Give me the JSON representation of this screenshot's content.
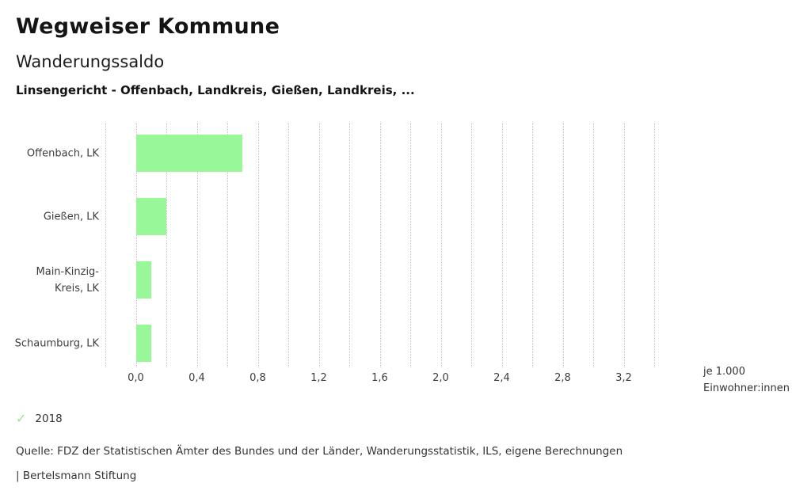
{
  "header": {
    "title": "Wegweiser Kommune",
    "subtitle": "Wanderungssaldo",
    "comparison_title": "Linsengericht - Offenbach, Landkreis, Gießen, Landkreis, ..."
  },
  "chart_data": {
    "type": "bar",
    "orientation": "horizontal",
    "title": "Wanderungssaldo",
    "subtitle": "Linsengericht - Offenbach, Landkreis, Gießen, Landkreis, ...",
    "categories": [
      "Offenbach, LK",
      "Gießen, LK",
      "Main-Kinzig-Kreis, LK",
      "Schaumburg, LK"
    ],
    "series": [
      {
        "name": "2018",
        "values": [
          0.7,
          0.2,
          0.1,
          0.1
        ]
      }
    ],
    "xlim": [
      -0.2,
      3.4
    ],
    "gridline_step": 0.2,
    "grid": "vertical-dotted",
    "x_tick_values": [
      0.0,
      0.4,
      0.8,
      1.2,
      1.6,
      2.0,
      2.4,
      2.8,
      3.2
    ],
    "x_tick_labels": [
      "0,0",
      "0,4",
      "0,8",
      "1,2",
      "1,6",
      "2,0",
      "2,4",
      "2,8",
      "3,2"
    ],
    "unit_label_line1": "je 1.000",
    "unit_label_line2": "Einwohner:innen",
    "bar_color": "#98f798",
    "legend_check_color": "#9bdf9b",
    "legend_position": "bottom-left"
  },
  "footer": {
    "source": "Quelle: FDZ der Statistischen Ämter des Bundes und der Länder, Wanderungsstatistik, ILS, eigene Berechnungen",
    "branding": "| Bertelsmann Stiftung"
  }
}
